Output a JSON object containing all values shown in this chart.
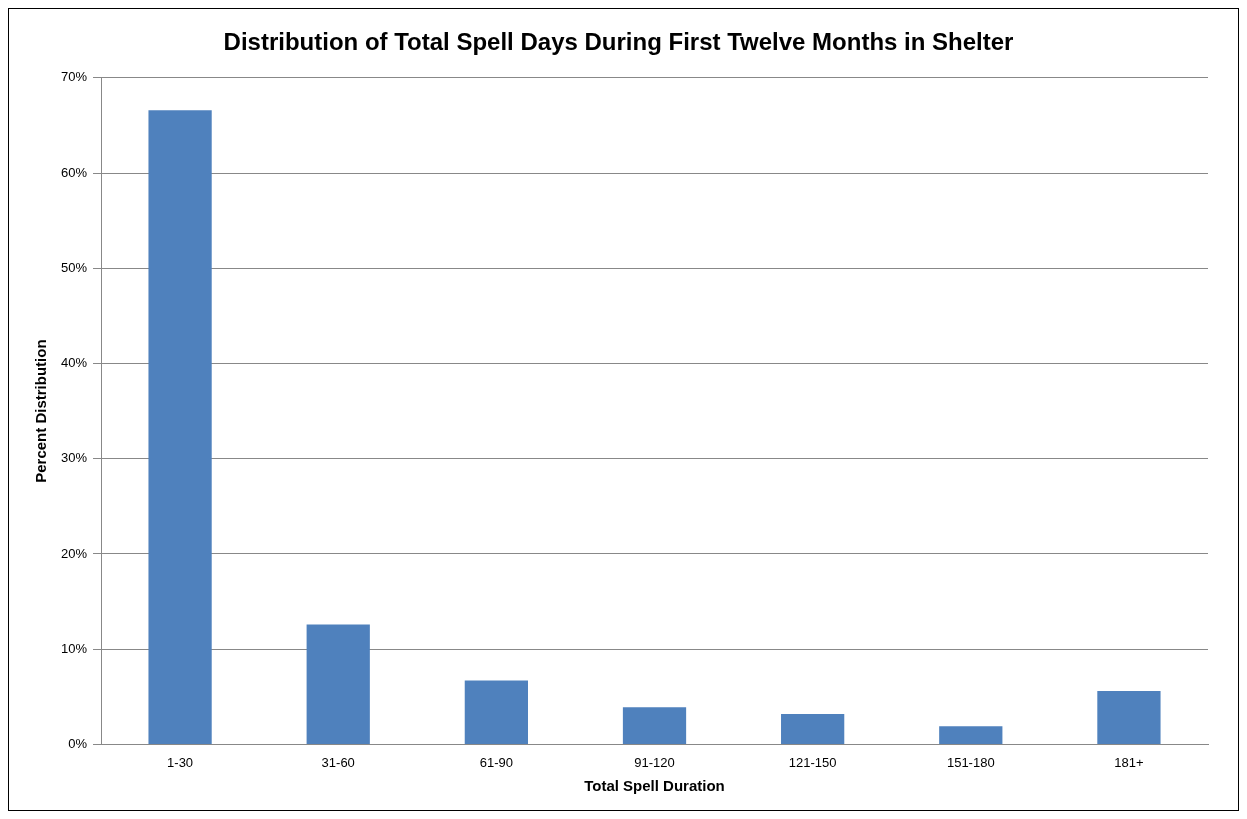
{
  "chart_data": {
    "type": "bar",
    "title": "Distribution of Total Spell Days During First Twelve Months in Shelter",
    "xlabel": "Total Spell Duration",
    "ylabel": "Percent Distribution",
    "categories": [
      "1-30",
      "31-60",
      "61-90",
      "91-120",
      "121-150",
      "151-180",
      "181+"
    ],
    "values": [
      66.6,
      12.6,
      6.7,
      3.9,
      3.2,
      1.9,
      5.6
    ],
    "color": "#4f81bd",
    "ylim": [
      0,
      70
    ],
    "yticks": [
      {
        "value": 0,
        "label": "0%"
      },
      {
        "value": 10,
        "label": "10%"
      },
      {
        "value": 20,
        "label": "20%"
      },
      {
        "value": 30,
        "label": "30%"
      },
      {
        "value": 40,
        "label": "40%"
      },
      {
        "value": 50,
        "label": "50%"
      },
      {
        "value": 60,
        "label": "60%"
      },
      {
        "value": 70,
        "label": "70%"
      }
    ],
    "grid": "y",
    "legend": false
  }
}
